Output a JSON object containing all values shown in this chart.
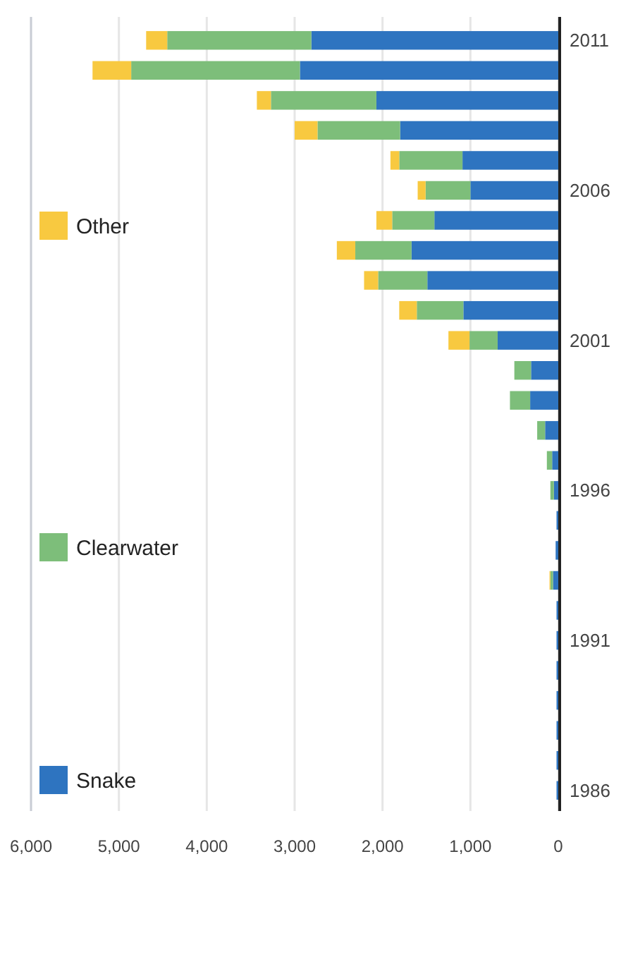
{
  "chart_data": {
    "type": "bar",
    "stacked": true,
    "orientation": "horizontal",
    "categories": [
      "2011",
      null,
      null,
      null,
      null,
      "2006",
      null,
      null,
      null,
      null,
      "2001",
      null,
      null,
      null,
      null,
      "1996",
      null,
      null,
      null,
      null,
      "1991",
      null,
      null,
      null,
      null,
      "1986"
    ],
    "series": [
      {
        "name": "Snake",
        "color": "#2e74c0",
        "values": [
          2810,
          2940,
          2070,
          1800,
          1090,
          1000,
          1410,
          1670,
          1490,
          1080,
          690,
          310,
          320,
          150,
          70,
          50,
          20,
          30,
          60,
          20,
          20,
          20,
          20,
          20,
          20,
          20
        ]
      },
      {
        "name": "Clearwater",
        "color": "#7dbe7a",
        "values": [
          1640,
          1920,
          1200,
          940,
          720,
          510,
          480,
          640,
          560,
          530,
          320,
          190,
          230,
          90,
          60,
          40,
          0,
          0,
          30,
          0,
          0,
          0,
          0,
          0,
          0,
          0
        ]
      },
      {
        "name": "Other",
        "color": "#f8c940",
        "values": [
          240,
          440,
          160,
          260,
          100,
          90,
          180,
          210,
          160,
          200,
          240,
          0,
          0,
          0,
          0,
          0,
          0,
          0,
          10,
          0,
          0,
          0,
          0,
          0,
          0,
          0
        ]
      }
    ],
    "xlim": [
      6000,
      0
    ],
    "xticks": [
      {
        "value": 6000,
        "label": "6,000"
      },
      {
        "value": 5000,
        "label": "5,000"
      },
      {
        "value": 4000,
        "label": "4,000"
      },
      {
        "value": 3000,
        "label": "3,000"
      },
      {
        "value": 2000,
        "label": "2,000"
      },
      {
        "value": 1000,
        "label": "1,000"
      },
      0
    ],
    "grid": "x",
    "legend": "left"
  }
}
